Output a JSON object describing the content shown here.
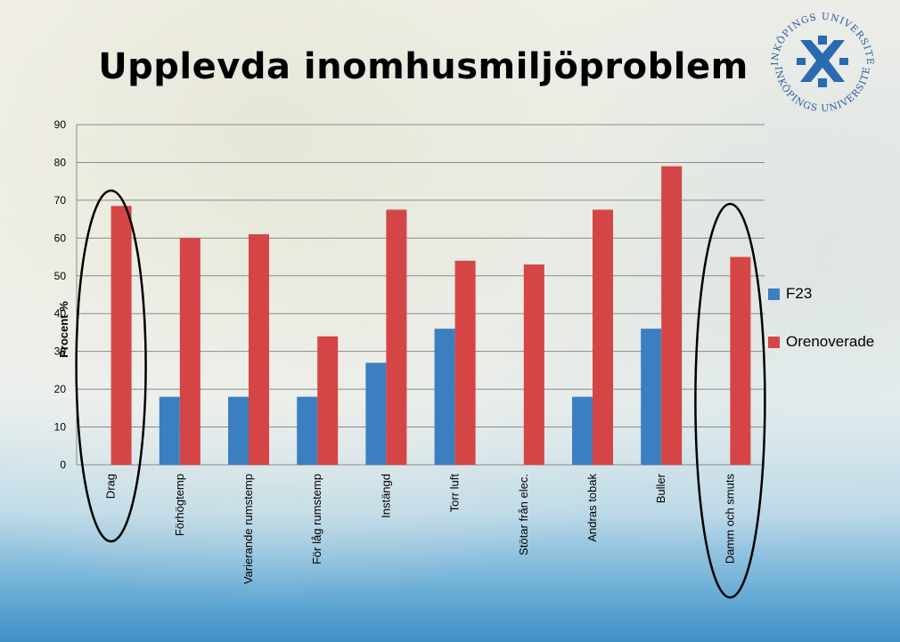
{
  "title": "Upplevda inomhusmiljöproblem",
  "logo": {
    "text_top": "LINKÖPINGS UNIVERSITET",
    "text_bottom": "LINKÖPINGS UNIVERSITET",
    "color": "#2a5aa0"
  },
  "chart_data": {
    "type": "bar",
    "ylabel": "Procent %",
    "ylim": [
      0,
      90
    ],
    "yticks": [
      0,
      10,
      20,
      30,
      40,
      50,
      60,
      70,
      80,
      90
    ],
    "grid": true,
    "legend_position": "right",
    "categories": [
      "Drag",
      "Förhögtemp",
      "Varierande rumstemp",
      "För låg rumstemp",
      "Instängd",
      "Torr luft",
      "Stötar från elec.",
      "Andras tobak",
      "Buller",
      "Damm och smuts"
    ],
    "series": [
      {
        "name": "F23",
        "color": "#3c7fc0",
        "values": [
          0,
          18,
          18,
          18,
          27,
          36,
          0,
          18,
          36,
          0
        ]
      },
      {
        "name": "Orenoverade",
        "color": "#d64545",
        "values": [
          68.5,
          60,
          61,
          34,
          67.5,
          54,
          53,
          67.5,
          79,
          55
        ]
      }
    ],
    "highlighted_categories": [
      "Drag",
      "Damm och smuts"
    ]
  }
}
